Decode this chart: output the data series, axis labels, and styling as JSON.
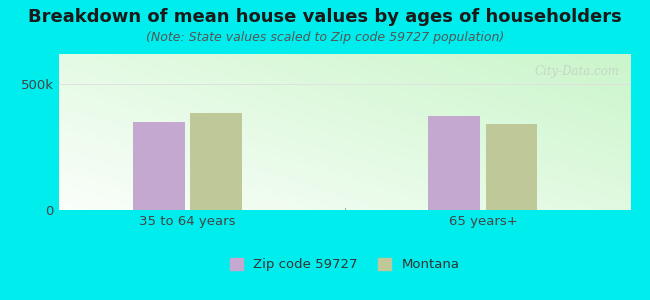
{
  "title": "Breakdown of mean house values by ages of householders",
  "subtitle": "(Note: State values scaled to Zip code 59727 population)",
  "categories": [
    "35 to 64 years",
    "65 years+"
  ],
  "series": [
    {
      "label": "Zip code 59727",
      "values": [
        350000,
        375000
      ],
      "color": "#c4a8d0"
    },
    {
      "label": "Montana",
      "values": [
        385000,
        340000
      ],
      "color": "#bec898"
    }
  ],
  "yticks": [
    0,
    500000
  ],
  "ytick_labels": [
    "0",
    "500k"
  ],
  "ylim": [
    0,
    620000
  ],
  "background_outer": "#00eded",
  "title_fontsize": 13,
  "subtitle_fontsize": 9,
  "bar_width": 0.28,
  "watermark": "City-Data.com",
  "legend_marker_color_zip": "#c4a8d0",
  "legend_marker_color_mt": "#bec898"
}
